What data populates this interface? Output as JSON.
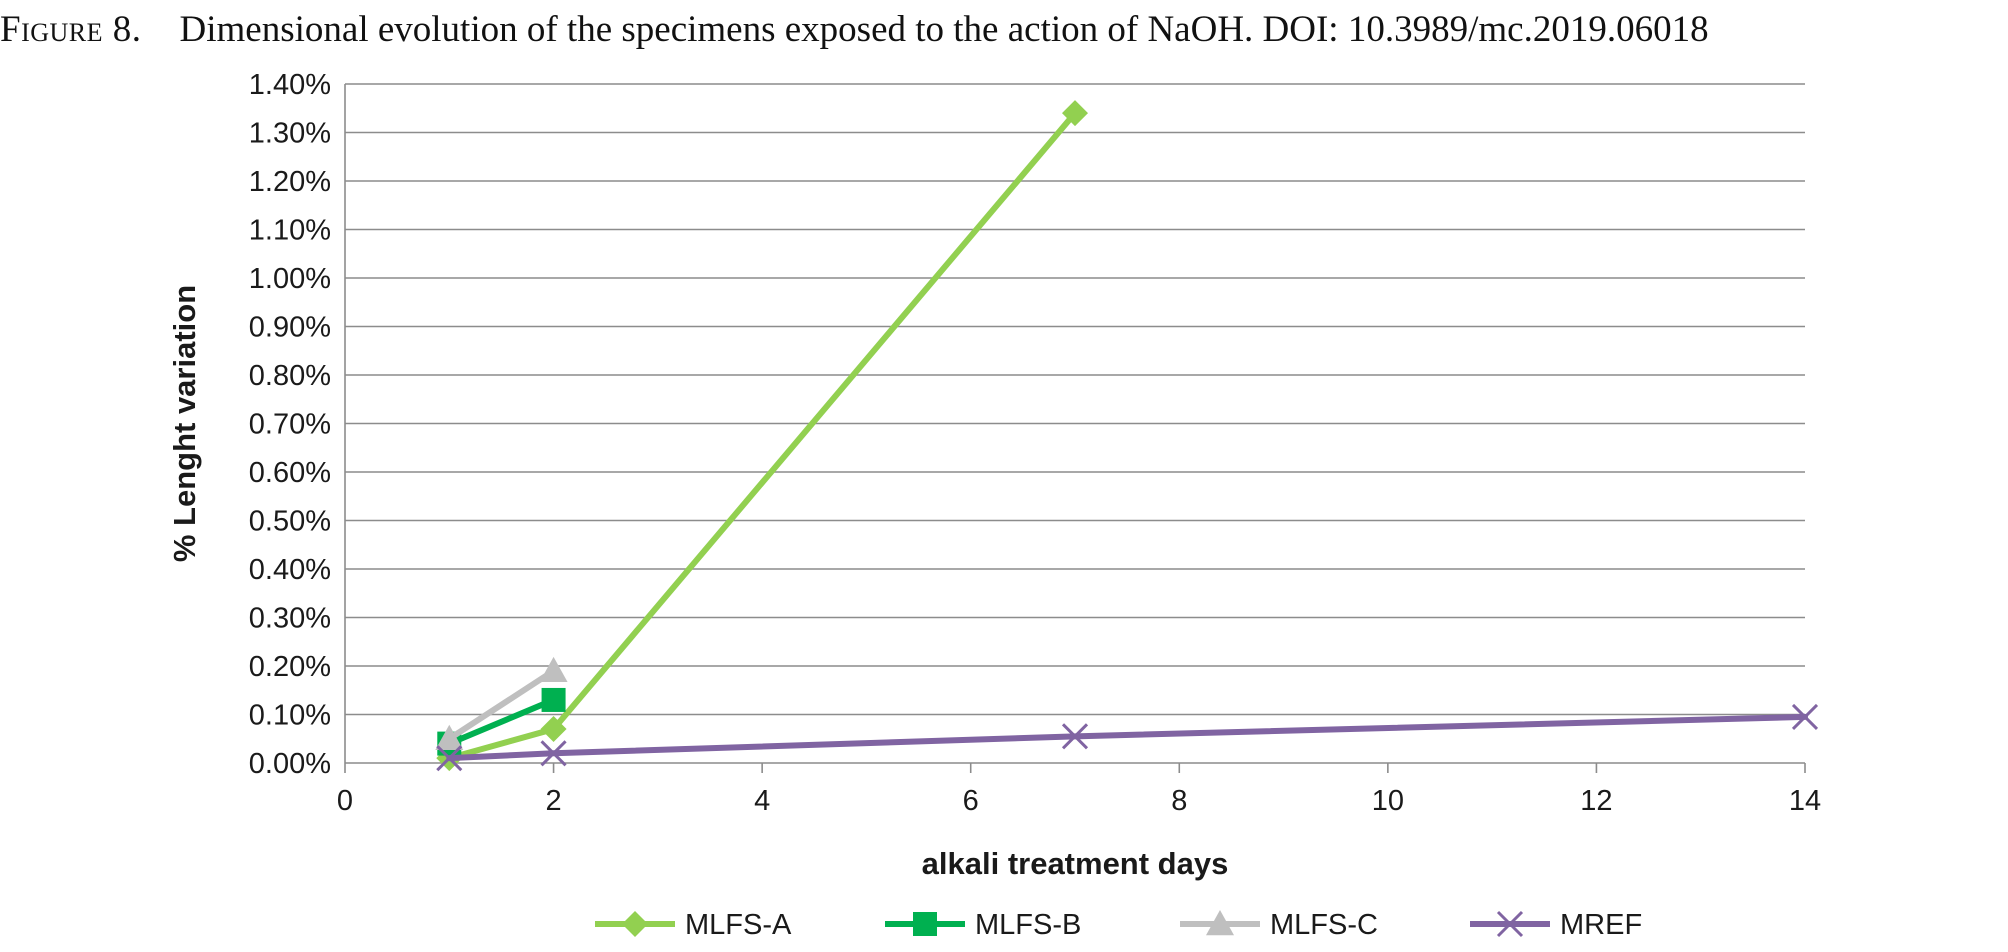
{
  "caption": {
    "label": "Figure 8.",
    "text": "Dimensional evolution of the specimens exposed to the action of NaOH. DOI: 10.3989/mc.2019.06018"
  },
  "chart_data": {
    "type": "line",
    "xlabel": "alkali treatment days",
    "ylabel": "% Lenght variation",
    "xlim": [
      0,
      14
    ],
    "ylim": [
      0,
      1.4
    ],
    "x_ticks": [
      0,
      2,
      4,
      6,
      8,
      10,
      12,
      14
    ],
    "x_tick_labels": [
      "0",
      "2",
      "4",
      "6",
      "8",
      "10",
      "12",
      "14"
    ],
    "y_ticks": [
      0,
      0.1,
      0.2,
      0.3,
      0.4,
      0.5,
      0.6,
      0.7,
      0.8,
      0.9,
      1.0,
      1.1,
      1.2,
      1.3,
      1.4
    ],
    "y_tick_labels": [
      "0.00%",
      "0.10%",
      "0.20%",
      "0.30%",
      "0.40%",
      "0.50%",
      "0.60%",
      "0.70%",
      "0.80%",
      "0.90%",
      "1.00%",
      "1.10%",
      "1.20%",
      "1.30%",
      "1.40%"
    ],
    "grid": "horizontal",
    "legend_position": "bottom",
    "series": [
      {
        "name": "MLFS-A",
        "color": "#92d050",
        "marker": "diamond",
        "x": [
          1,
          2,
          7
        ],
        "y": [
          0.01,
          0.07,
          1.34
        ]
      },
      {
        "name": "MLFS-B",
        "color": "#00b050",
        "marker": "square",
        "x": [
          1,
          2
        ],
        "y": [
          0.04,
          0.13
        ]
      },
      {
        "name": "MLFS-C",
        "color": "#bfbfbf",
        "marker": "triangle",
        "x": [
          1,
          2
        ],
        "y": [
          0.05,
          0.19
        ]
      },
      {
        "name": "MREF",
        "color": "#8064a2",
        "marker": "x",
        "x": [
          1,
          2,
          7,
          14
        ],
        "y": [
          0.01,
          0.02,
          0.055,
          0.095
        ]
      }
    ]
  }
}
